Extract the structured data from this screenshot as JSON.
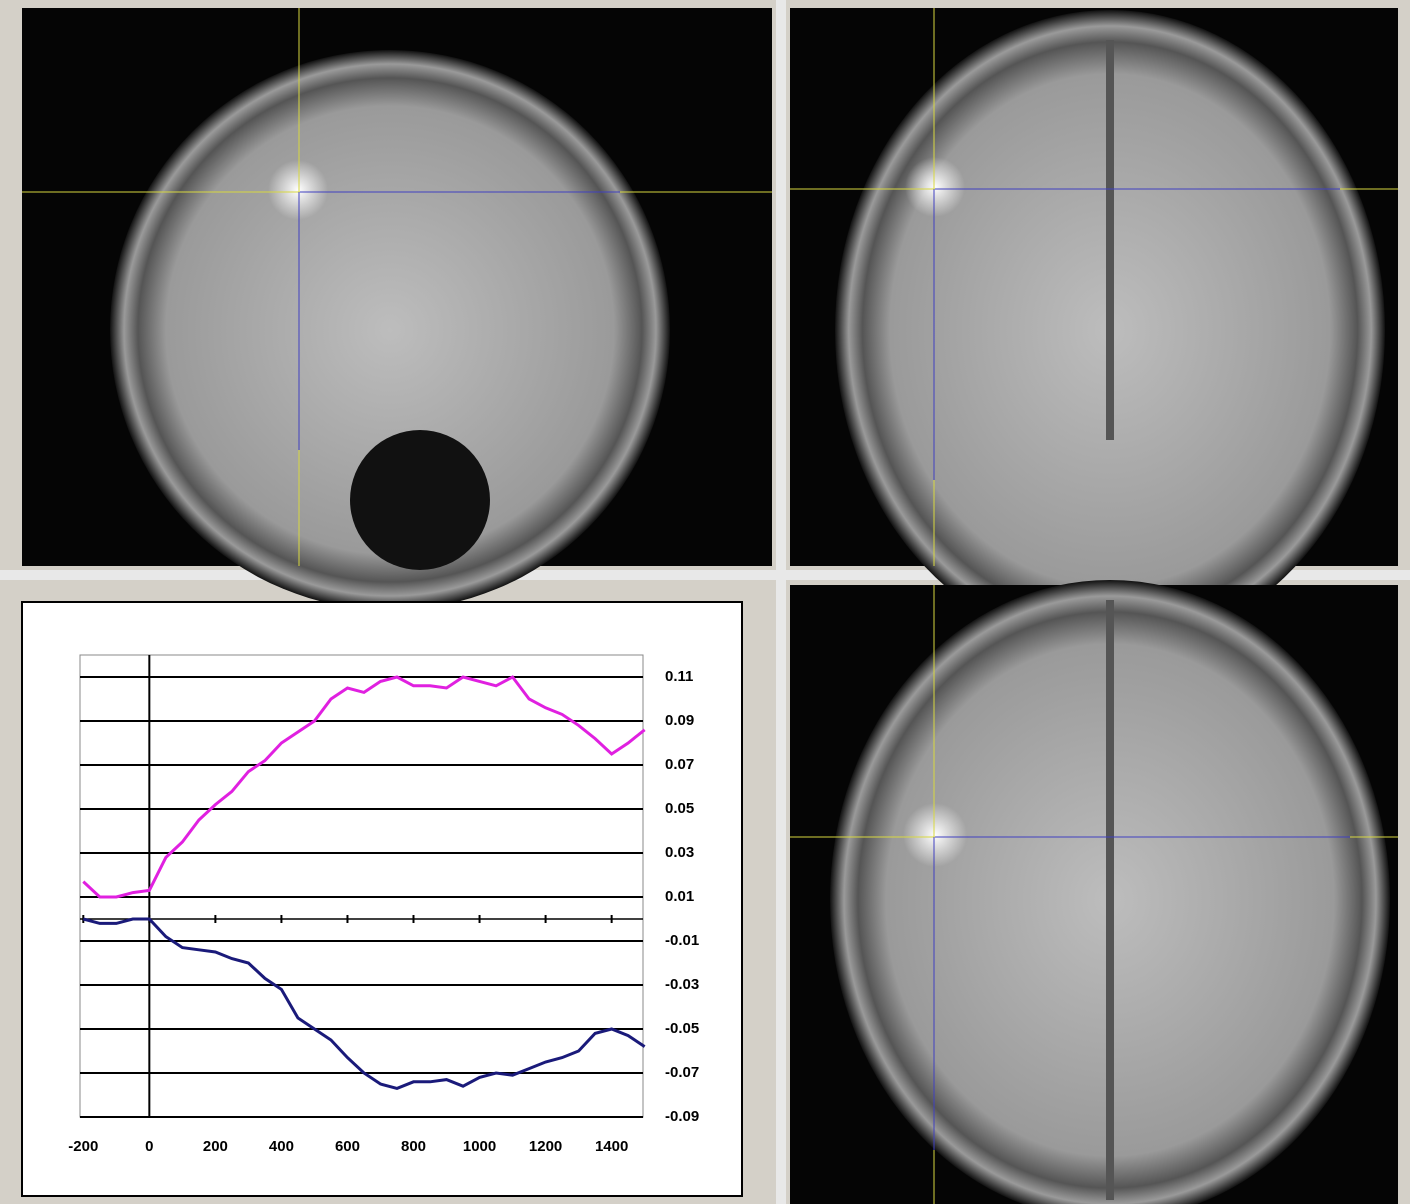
{
  "chart_data": {
    "type": "line",
    "x": [
      -200,
      -150,
      -100,
      -50,
      0,
      50,
      100,
      150,
      200,
      250,
      300,
      350,
      400,
      450,
      500,
      550,
      600,
      650,
      700,
      750,
      800,
      850,
      900,
      950,
      1000,
      1050,
      1100,
      1150,
      1200,
      1250,
      1300,
      1350,
      1400,
      1450,
      1500
    ],
    "series": [
      {
        "color": "#e020e0",
        "values": [
          0.017,
          0.01,
          0.01,
          0.012,
          0.013,
          0.028,
          0.035,
          0.045,
          0.052,
          0.058,
          0.067,
          0.072,
          0.08,
          0.085,
          0.09,
          0.1,
          0.105,
          0.103,
          0.108,
          0.11,
          0.106,
          0.106,
          0.105,
          0.11,
          0.108,
          0.106,
          0.11,
          0.1,
          0.096,
          0.093,
          0.088,
          0.082,
          0.075,
          0.08,
          0.086
        ]
      },
      {
        "color": "#1a1a7a",
        "values": [
          0.0,
          -0.002,
          -0.002,
          0.0,
          0.0,
          -0.008,
          -0.013,
          -0.014,
          -0.015,
          -0.018,
          -0.02,
          -0.027,
          -0.032,
          -0.045,
          -0.05,
          -0.055,
          -0.063,
          -0.07,
          -0.075,
          -0.077,
          -0.074,
          -0.074,
          -0.073,
          -0.076,
          -0.072,
          -0.07,
          -0.071,
          -0.068,
          -0.065,
          -0.063,
          -0.06,
          -0.052,
          -0.05,
          -0.053,
          -0.058
        ]
      }
    ],
    "xlim": [
      -210,
      1495
    ],
    "xticks": [
      -200,
      0,
      200,
      400,
      600,
      800,
      1000,
      1200,
      1400
    ],
    "ylim": [
      -0.09,
      0.12
    ],
    "yticks": [
      0.11,
      0.09,
      0.07,
      0.05,
      0.03,
      0.01,
      -0.01,
      -0.03,
      -0.05,
      -0.07,
      -0.09
    ],
    "grid": true
  }
}
